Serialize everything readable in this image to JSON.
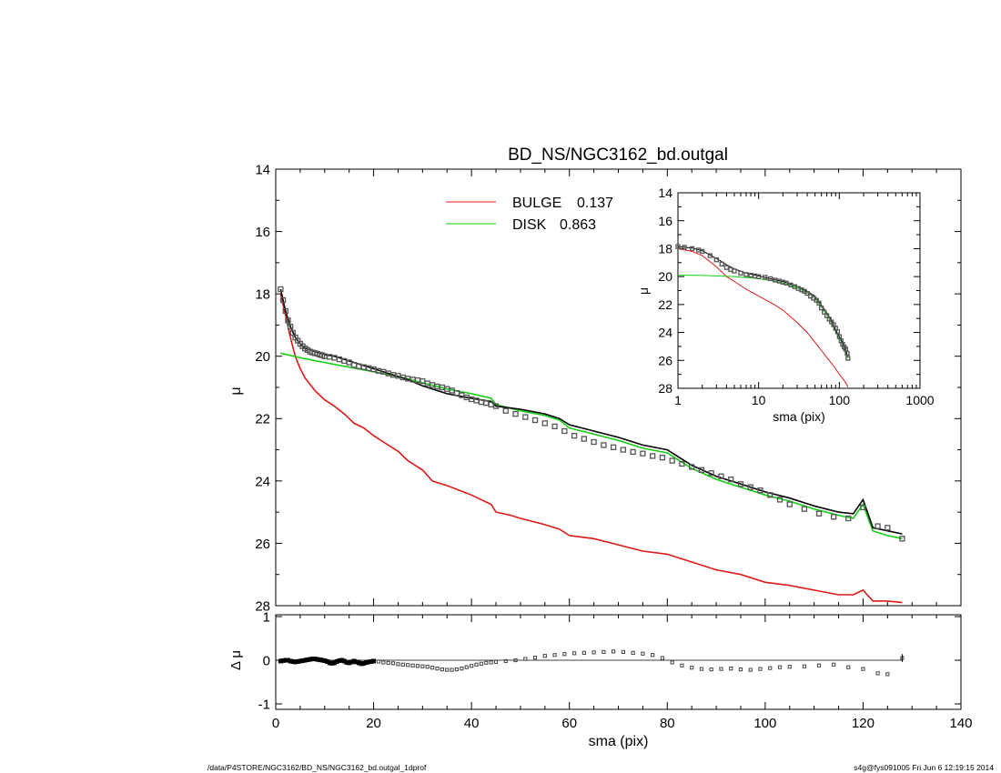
{
  "footer": {
    "path": "/data/P4STORE/NGC3162/BD_NS/NGC3162_bd.outgal_1dprof",
    "stamp": "s4g@fys091005  Fri Jun  6 12:19:15 2014"
  },
  "colors": {
    "bulge": "#e01818",
    "disk": "#10d010",
    "model": "#000000",
    "data": "#555555"
  },
  "chart_data": [
    {
      "id": "main",
      "type": "line",
      "title": "BD_NS/NGC3162_bd.outgal",
      "xlabel": "",
      "ylabel": "μ",
      "xlim": [
        0,
        140
      ],
      "ylim": [
        28,
        14
      ],
      "yticks": [
        14,
        16,
        18,
        20,
        22,
        24,
        26,
        28
      ],
      "legend": [
        {
          "label": "BULGE",
          "value": "0.137",
          "color": "#e01818"
        },
        {
          "label": "DISK",
          "value": "0.863",
          "color": "#10d010"
        }
      ],
      "series": [
        {
          "name": "BULGE",
          "x": [
            1,
            2,
            3,
            4,
            5,
            6,
            8,
            10,
            12,
            14,
            16,
            18,
            20,
            22,
            25,
            27,
            30,
            32,
            35,
            40,
            44,
            45,
            48,
            50,
            55,
            58,
            60,
            65,
            70,
            75,
            80,
            82,
            85,
            90,
            95,
            100,
            105,
            110,
            115,
            118,
            120,
            122,
            125,
            128
          ],
          "y": [
            18.0,
            18.7,
            19.4,
            20.0,
            20.4,
            20.7,
            21.1,
            21.4,
            21.6,
            21.85,
            22.15,
            22.3,
            22.55,
            22.75,
            23.05,
            23.35,
            23.65,
            24.0,
            24.15,
            24.45,
            24.75,
            25.0,
            25.1,
            25.2,
            25.4,
            25.55,
            25.75,
            25.85,
            26.05,
            26.25,
            26.35,
            26.45,
            26.6,
            26.85,
            27.0,
            27.25,
            27.35,
            27.5,
            27.65,
            27.65,
            27.5,
            27.85,
            27.85,
            27.9
          ]
        },
        {
          "name": "DISK",
          "x": [
            1,
            5,
            10,
            15,
            20,
            25,
            30,
            35,
            40,
            44,
            45,
            50,
            55,
            58,
            60,
            65,
            70,
            75,
            80,
            82,
            85,
            90,
            95,
            100,
            105,
            110,
            115,
            118,
            120,
            122,
            125,
            128
          ],
          "y": [
            19.9,
            20.05,
            20.2,
            20.35,
            20.5,
            20.65,
            20.85,
            21.05,
            21.2,
            21.35,
            21.55,
            21.75,
            21.9,
            22.05,
            22.3,
            22.5,
            22.7,
            22.95,
            23.1,
            23.3,
            23.6,
            23.95,
            24.2,
            24.45,
            24.65,
            24.9,
            25.1,
            25.2,
            24.75,
            25.6,
            25.75,
            25.85
          ]
        },
        {
          "name": "",
          "x": [
            1,
            2,
            3,
            4,
            5,
            6,
            8,
            10,
            12,
            14,
            16,
            18,
            20,
            22,
            25,
            27,
            30,
            32,
            35,
            40,
            44,
            45,
            50,
            55,
            58,
            60,
            65,
            70,
            75,
            80,
            82,
            85,
            90,
            95,
            100,
            105,
            110,
            115,
            118,
            120,
            122,
            125,
            128
          ],
          "y": [
            17.85,
            18.55,
            19.05,
            19.4,
            19.6,
            19.75,
            19.85,
            19.95,
            20.0,
            20.1,
            20.2,
            20.3,
            20.4,
            20.5,
            20.65,
            20.75,
            20.95,
            21.05,
            21.2,
            21.35,
            21.45,
            21.6,
            21.7,
            21.85,
            22.0,
            22.2,
            22.4,
            22.6,
            22.85,
            23.0,
            23.2,
            23.5,
            23.85,
            24.1,
            24.35,
            24.55,
            24.8,
            25.0,
            25.05,
            24.6,
            25.5,
            25.6,
            25.7
          ]
        },
        {
          "name": "",
          "kind": "points",
          "x": [
            1,
            1.5,
            2,
            2.5,
            3,
            3.5,
            4,
            4.5,
            5,
            5.5,
            6,
            6.5,
            7,
            7.5,
            8,
            8.5,
            9,
            9.5,
            10,
            11,
            12,
            13,
            14,
            15,
            16,
            17,
            18,
            19,
            20,
            21,
            22,
            23,
            24,
            25,
            26,
            27,
            28,
            29,
            30,
            31,
            32,
            33,
            34,
            35,
            36,
            37,
            38,
            39,
            40,
            41,
            42,
            43,
            44,
            45,
            47,
            49,
            51,
            53,
            55,
            57,
            59,
            61,
            63,
            65,
            67,
            69,
            71,
            73,
            75,
            77,
            79,
            81,
            83,
            85,
            87,
            89,
            91,
            93,
            95,
            97,
            99,
            101,
            103,
            105,
            108,
            111,
            114,
            117,
            120,
            123,
            125,
            128
          ],
          "y": [
            17.85,
            18.2,
            18.55,
            18.85,
            19.05,
            19.25,
            19.4,
            19.5,
            19.6,
            19.68,
            19.75,
            19.8,
            19.85,
            19.88,
            19.9,
            19.92,
            19.95,
            19.97,
            20.0,
            20.02,
            20.05,
            20.1,
            20.15,
            20.2,
            20.28,
            20.32,
            20.35,
            20.38,
            20.42,
            20.47,
            20.5,
            20.55,
            20.6,
            20.63,
            20.68,
            20.72,
            20.75,
            20.77,
            20.8,
            20.87,
            20.92,
            20.97,
            21.0,
            21.05,
            21.1,
            21.18,
            21.25,
            21.32,
            21.38,
            21.42,
            21.47,
            21.5,
            21.55,
            21.6,
            21.75,
            21.85,
            21.95,
            22.05,
            22.15,
            22.25,
            22.4,
            22.55,
            22.65,
            22.75,
            22.85,
            22.92,
            23.0,
            23.07,
            23.12,
            23.2,
            23.25,
            23.35,
            23.45,
            23.55,
            23.65,
            23.75,
            23.85,
            23.95,
            24.1,
            24.2,
            24.3,
            24.45,
            24.6,
            24.75,
            24.9,
            25.05,
            25.15,
            25.2,
            24.85,
            25.45,
            25.5,
            25.85
          ]
        }
      ]
    },
    {
      "id": "inset",
      "type": "line",
      "title": "",
      "xlabel": "sma (pix)",
      "ylabel": "μ",
      "xscale": "log",
      "xlim": [
        1,
        1000
      ],
      "xticks": [
        1,
        10,
        100,
        1000
      ],
      "ylim": [
        28,
        14
      ],
      "yticks": [
        14,
        16,
        18,
        20,
        22,
        24,
        26,
        28
      ],
      "series": [
        {
          "name": "BULGE",
          "x": [
            1,
            1.5,
            2,
            3,
            4,
            5,
            7,
            10,
            15,
            20,
            30,
            40,
            50,
            60,
            70,
            80,
            90,
            100,
            110,
            120,
            128
          ],
          "y": [
            18.0,
            18.2,
            18.5,
            19.3,
            20.0,
            20.35,
            20.9,
            21.4,
            21.95,
            22.4,
            23.3,
            24.0,
            24.7,
            25.3,
            25.8,
            26.2,
            26.6,
            27.0,
            27.3,
            27.6,
            27.9
          ]
        },
        {
          "name": "DISK",
          "x": [
            1,
            2,
            5,
            10,
            15,
            20,
            30,
            40,
            50,
            60,
            70,
            80,
            90,
            100,
            110,
            120,
            128
          ],
          "y": [
            19.9,
            19.92,
            20.0,
            20.15,
            20.3,
            20.45,
            20.8,
            21.15,
            21.5,
            22.2,
            22.75,
            23.3,
            23.95,
            24.4,
            24.85,
            25.4,
            25.85
          ]
        },
        {
          "name": "",
          "x": [
            1,
            1.5,
            2,
            3,
            4,
            5,
            7,
            10,
            15,
            20,
            30,
            40,
            50,
            60,
            70,
            80,
            90,
            100,
            110,
            120,
            128
          ],
          "y": [
            17.85,
            17.95,
            18.15,
            18.7,
            19.15,
            19.45,
            19.75,
            19.95,
            20.2,
            20.35,
            20.7,
            21.05,
            21.4,
            22.05,
            22.6,
            23.15,
            23.8,
            24.3,
            24.75,
            25.3,
            25.75
          ]
        },
        {
          "name": "",
          "kind": "points",
          "x": [
            1,
            1.2,
            1.5,
            1.8,
            2,
            2.5,
            3,
            3.5,
            4,
            4.5,
            5,
            6,
            7,
            8,
            9,
            10,
            12,
            14,
            16,
            18,
            20,
            22,
            25,
            28,
            31,
            34,
            37,
            40,
            44,
            48,
            52,
            56,
            60,
            65,
            70,
            75,
            80,
            85,
            90,
            95,
            100,
            105,
            110,
            115,
            120,
            125,
            128
          ],
          "y": [
            17.85,
            17.9,
            18.0,
            18.1,
            18.2,
            18.5,
            18.8,
            19.1,
            19.35,
            19.5,
            19.6,
            19.75,
            19.85,
            19.9,
            19.95,
            20.0,
            20.05,
            20.15,
            20.25,
            20.32,
            20.4,
            20.47,
            20.6,
            20.72,
            20.85,
            20.95,
            21.05,
            21.2,
            21.4,
            21.55,
            21.7,
            21.9,
            22.25,
            22.55,
            22.8,
            23.05,
            23.25,
            23.45,
            23.7,
            23.95,
            24.3,
            24.6,
            24.85,
            25.05,
            25.2,
            25.5,
            25.85
          ]
        }
      ]
    },
    {
      "id": "residual",
      "type": "scatter",
      "title": "",
      "xlabel": "sma (pix)",
      "ylabel": "Δ μ",
      "xlim": [
        0,
        140
      ],
      "xticks": [
        0,
        20,
        40,
        60,
        80,
        100,
        120,
        140
      ],
      "ylim": [
        -1,
        1
      ],
      "yticks": [
        -1,
        0,
        1
      ],
      "series": [
        {
          "name": "",
          "x": [
            1,
            1.5,
            2,
            2.5,
            3,
            3.5,
            4,
            4.5,
            5,
            5.5,
            6,
            6.5,
            7,
            7.5,
            8,
            8.5,
            9,
            9.5,
            10,
            10.5,
            11,
            11.5,
            12,
            12.5,
            13,
            13.5,
            14,
            14.5,
            15,
            15.5,
            16,
            16.5,
            17,
            17.5,
            18,
            18.5,
            19,
            19.5,
            20,
            21,
            22,
            23,
            24,
            25,
            26,
            27,
            28,
            29,
            30,
            31,
            32,
            33,
            34,
            35,
            36,
            37,
            38,
            39,
            40,
            41,
            42,
            43,
            44,
            45,
            47,
            49,
            51,
            53,
            55,
            57,
            59,
            61,
            63,
            65,
            67,
            69,
            71,
            73,
            75,
            77,
            79,
            81,
            83,
            85,
            87,
            89,
            91,
            93,
            95,
            97,
            99,
            101,
            103,
            105,
            108,
            111,
            114,
            117,
            120,
            123,
            125,
            128
          ],
          "y": [
            -0.02,
            -0.01,
            0.0,
            0.0,
            -0.02,
            -0.03,
            -0.04,
            -0.03,
            -0.02,
            -0.01,
            0.0,
            0.01,
            0.02,
            0.03,
            0.03,
            0.02,
            0.01,
            0.0,
            -0.01,
            -0.03,
            -0.06,
            -0.07,
            -0.06,
            -0.03,
            -0.01,
            0.0,
            -0.02,
            -0.05,
            -0.06,
            -0.04,
            -0.02,
            -0.04,
            -0.06,
            -0.08,
            -0.07,
            -0.05,
            -0.04,
            -0.03,
            -0.02,
            -0.03,
            -0.05,
            -0.06,
            -0.07,
            -0.09,
            -0.1,
            -0.11,
            -0.12,
            -0.13,
            -0.14,
            -0.15,
            -0.17,
            -0.19,
            -0.21,
            -0.22,
            -0.22,
            -0.21,
            -0.19,
            -0.16,
            -0.13,
            -0.1,
            -0.08,
            -0.06,
            -0.05,
            -0.04,
            -0.02,
            0.0,
            0.03,
            0.06,
            0.1,
            0.12,
            0.14,
            0.16,
            0.17,
            0.18,
            0.19,
            0.2,
            0.19,
            0.17,
            0.15,
            0.12,
            0.05,
            -0.05,
            -0.12,
            -0.17,
            -0.2,
            -0.21,
            -0.2,
            -0.19,
            -0.21,
            -0.22,
            -0.2,
            -0.18,
            -0.16,
            -0.15,
            -0.14,
            -0.12,
            -0.1,
            -0.16,
            -0.2,
            -0.3,
            -0.32,
            0.05
          ]
        }
      ]
    }
  ]
}
